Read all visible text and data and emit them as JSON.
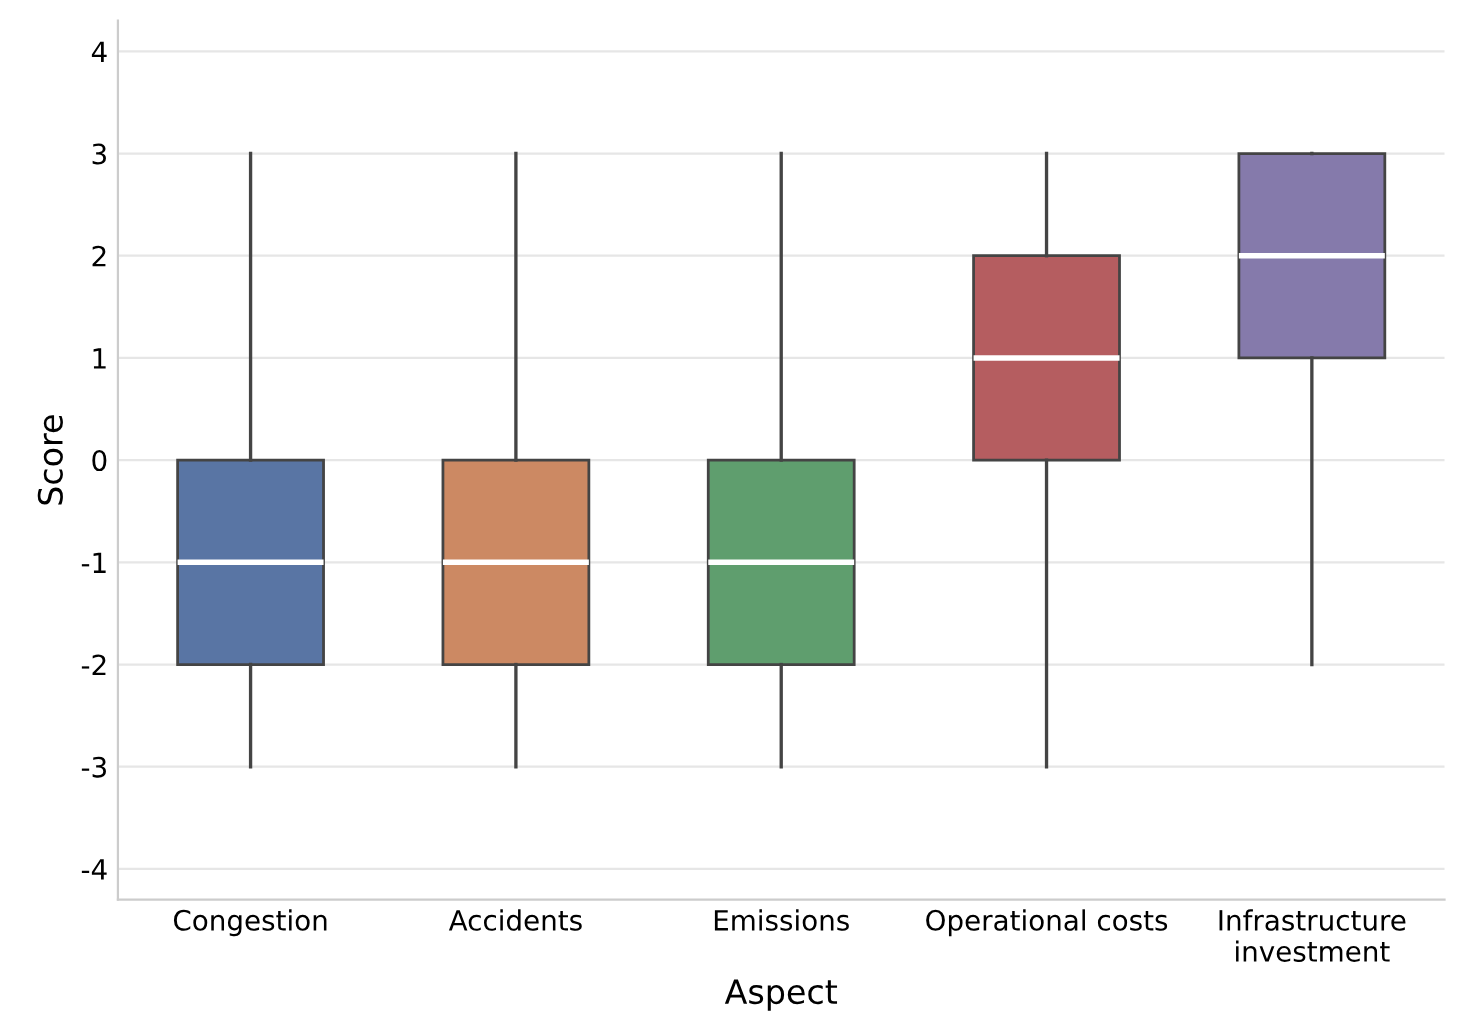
{
  "chart_data": {
    "type": "box",
    "xlabel": "Aspect",
    "ylabel": "Score",
    "categories": [
      "Congestion",
      "Accidents",
      "Emissions",
      "Operational costs",
      "Infrastructure\ninvestment"
    ],
    "colors": [
      "#5975a4",
      "#cc8963",
      "#5f9e6e",
      "#b55d60",
      "#857aab"
    ],
    "boxes": [
      {
        "low": -3,
        "q1": -2,
        "median": -1,
        "q3": 0,
        "high": 3
      },
      {
        "low": -3,
        "q1": -2,
        "median": -1,
        "q3": 0,
        "high": 3
      },
      {
        "low": -3,
        "q1": -2,
        "median": -1,
        "q3": 0,
        "high": 3
      },
      {
        "low": -3,
        "q1": 0,
        "median": 1,
        "q3": 2,
        "high": 3
      },
      {
        "low": -2,
        "q1": 1,
        "median": 2,
        "q3": 3,
        "high": 3
      }
    ],
    "ylim": [
      -4.3,
      4.3
    ],
    "yticks": [
      -4,
      -3,
      -2,
      -1,
      0,
      1,
      2,
      3,
      4
    ],
    "grid": "y"
  }
}
